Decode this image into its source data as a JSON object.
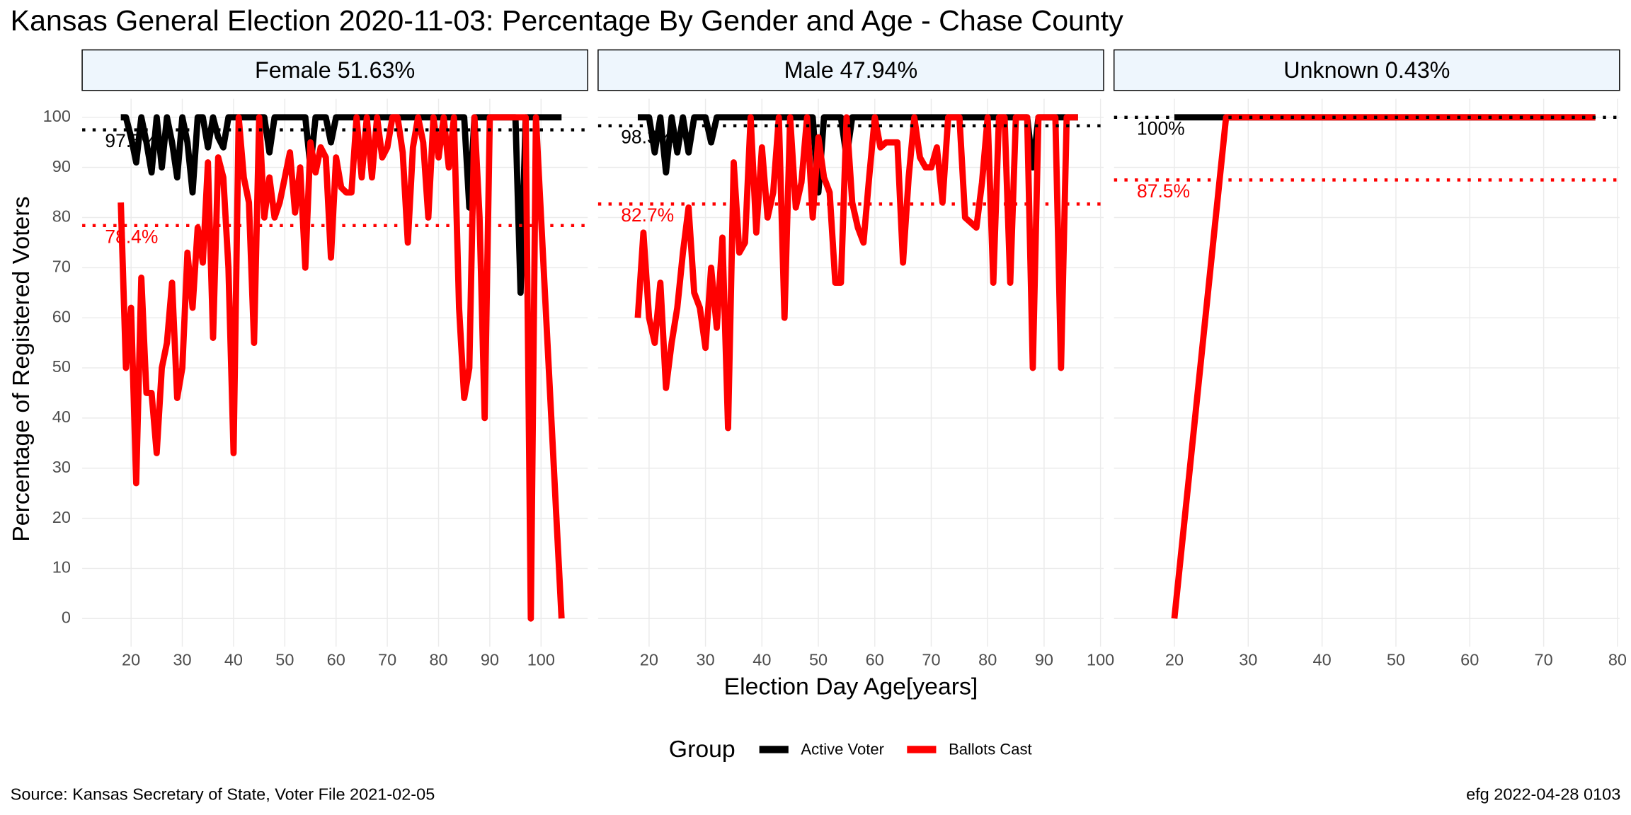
{
  "chart_data": {
    "type": "line",
    "title": "Kansas General Election 2020-11-03:  Percentage By Gender and Age - Chase County",
    "xlabel": "Election Day Age[years]",
    "ylabel": "Percentage of Registered Voters",
    "legend_title": "Group",
    "caption_left": "Source:  Kansas Secretary of State, Voter File  2021-02-05",
    "caption_right": "efg 2022-04-28 0103",
    "ylim": [
      -5.6,
      103.7
    ],
    "yticks": [
      0,
      10,
      20,
      30,
      40,
      50,
      60,
      70,
      80,
      90,
      100
    ],
    "grid": true,
    "panels": [
      {
        "label": "Female 51.63%",
        "xlim": [
          10.46,
          109.1
        ],
        "xticks": [
          20,
          30,
          40,
          50,
          60,
          70,
          80,
          90,
          100
        ],
        "x": [
          18,
          19,
          20,
          21,
          22,
          23,
          24,
          25,
          26,
          27,
          28,
          29,
          30,
          31,
          32,
          33,
          34,
          35,
          36,
          37,
          38,
          39,
          40,
          41,
          42,
          43,
          44,
          45,
          46,
          47,
          48,
          49,
          50,
          51,
          52,
          53,
          54,
          55,
          56,
          57,
          58,
          59,
          60,
          61,
          62,
          63,
          64,
          65,
          66,
          67,
          68,
          69,
          70,
          71,
          72,
          73,
          74,
          75,
          76,
          77,
          78,
          79,
          80,
          81,
          82,
          83,
          84,
          85,
          86,
          87,
          88,
          89,
          90,
          91,
          92,
          93,
          94,
          95,
          96,
          97,
          98,
          99,
          100,
          104
        ],
        "series": [
          {
            "name": "Active Voter",
            "color": "#000000",
            "values": [
              100,
              100,
              96,
              91,
              100,
              95,
              89,
              100,
              90,
              100,
              95,
              88,
              100,
              95,
              85,
              100,
              100,
              94,
              100,
              96,
              94,
              100,
              100,
              100,
              100,
              100,
              100,
              100,
              100,
              93,
              100,
              100,
              100,
              100,
              100,
              100,
              100,
              90,
              100,
              100,
              100,
              95,
              100,
              100,
              100,
              100,
              100,
              100,
              100,
              100,
              100,
              100,
              100,
              100,
              100,
              100,
              100,
              100,
              100,
              100,
              100,
              100,
              100,
              100,
              100,
              100,
              100,
              100,
              82,
              100,
              100,
              100,
              100,
              100,
              100,
              100,
              100,
              100,
              65,
              100,
              100,
              100,
              100,
              100
            ]
          },
          {
            "name": "Ballots Cast",
            "color": "#ff0000",
            "values": [
              83,
              50,
              62,
              27,
              68,
              45,
              45,
              33,
              50,
              55,
              67,
              44,
              50,
              73,
              62,
              78,
              71,
              91,
              56,
              92,
              88,
              70,
              33,
              100,
              88,
              83,
              55,
              100,
              80,
              88,
              80,
              83,
              88,
              93,
              81,
              90,
              70,
              95,
              89,
              94,
              92,
              72,
              92,
              86,
              85,
              85,
              100,
              88,
              100,
              88,
              100,
              92,
              94,
              100,
              100,
              93,
              75,
              94,
              100,
              95,
              80,
              100,
              92,
              100,
              90,
              100,
              62,
              44,
              50,
              100,
              80,
              40,
              100,
              100,
              100,
              100,
              100,
              100,
              100,
              100,
              0,
              100,
              80,
              0
            ]
          }
        ],
        "reference_lines": [
          {
            "value": 97.5,
            "label": "97.5%",
            "color": "#000000"
          },
          {
            "value": 78.4,
            "label": "78.4%",
            "color": "#ff0000"
          }
        ]
      },
      {
        "label": "Male 47.94%",
        "xlim": [
          10.97,
          100.55
        ],
        "xticks": [
          20,
          30,
          40,
          50,
          60,
          70,
          80,
          90,
          100
        ],
        "x": [
          18,
          19,
          20,
          21,
          22,
          23,
          24,
          25,
          26,
          27,
          28,
          29,
          30,
          31,
          32,
          33,
          34,
          35,
          36,
          37,
          38,
          39,
          40,
          41,
          42,
          43,
          44,
          45,
          46,
          47,
          48,
          49,
          50,
          51,
          52,
          53,
          54,
          55,
          56,
          57,
          58,
          59,
          60,
          61,
          62,
          63,
          64,
          65,
          66,
          67,
          68,
          69,
          70,
          71,
          72,
          73,
          74,
          75,
          76,
          77,
          78,
          79,
          80,
          81,
          82,
          83,
          84,
          85,
          86,
          87,
          88,
          89,
          90,
          91,
          92,
          93,
          94,
          95,
          96
        ],
        "series": [
          {
            "name": "Active Voter",
            "color": "#000000",
            "values": [
              100,
              100,
              100,
              93,
              100,
              89,
              100,
              93,
              100,
              93,
              100,
              100,
              100,
              95,
              100,
              100,
              100,
              100,
              100,
              100,
              100,
              100,
              100,
              100,
              100,
              100,
              100,
              100,
              100,
              100,
              100,
              100,
              85,
              100,
              100,
              100,
              100,
              92,
              100,
              100,
              100,
              100,
              100,
              100,
              100,
              100,
              100,
              100,
              100,
              100,
              100,
              100,
              100,
              100,
              100,
              100,
              100,
              100,
              100,
              100,
              100,
              100,
              100,
              100,
              100,
              100,
              100,
              100,
              100,
              100,
              90,
              100,
              100,
              100,
              100,
              100,
              100,
              100,
              100
            ]
          },
          {
            "name": "Ballots Cast",
            "color": "#ff0000",
            "values": [
              60,
              77,
              60,
              55,
              67,
              46,
              55,
              62,
              73,
              82,
              65,
              62,
              54,
              70,
              58,
              76,
              38,
              91,
              73,
              75,
              100,
              77,
              94,
              80,
              85,
              100,
              60,
              100,
              82,
              87,
              100,
              80,
              96,
              88,
              85,
              67,
              67,
              100,
              83,
              78,
              75,
              88,
              100,
              94,
              95,
              95,
              95,
              71,
              88,
              100,
              92,
              90,
              90,
              94,
              83,
              100,
              100,
              100,
              80,
              79,
              78,
              87,
              100,
              67,
              100,
              100,
              67,
              100,
              100,
              100,
              50,
              100,
              100,
              100,
              100,
              50,
              100,
              100,
              100
            ]
          }
        ],
        "reference_lines": [
          {
            "value": 98.3,
            "label": "98.3%",
            "color": "#000000"
          },
          {
            "value": 82.7,
            "label": "82.7%",
            "color": "#ff0000"
          }
        ]
      },
      {
        "label": "Unknown 0.43%",
        "xlim": [
          11.83,
          80.28
        ],
        "xticks": [
          20,
          30,
          40,
          50,
          60,
          70,
          80
        ],
        "x": [
          20,
          27,
          77
        ],
        "series": [
          {
            "name": "Active Voter",
            "color": "#000000",
            "values": [
              100,
              100,
              100
            ]
          },
          {
            "name": "Ballots Cast",
            "color": "#ff0000",
            "values": [
              0,
              100,
              100
            ]
          }
        ],
        "reference_lines": [
          {
            "value": 100,
            "label": "100%",
            "color": "#000000"
          },
          {
            "value": 87.5,
            "label": "87.5%",
            "color": "#ff0000"
          }
        ]
      }
    ]
  }
}
